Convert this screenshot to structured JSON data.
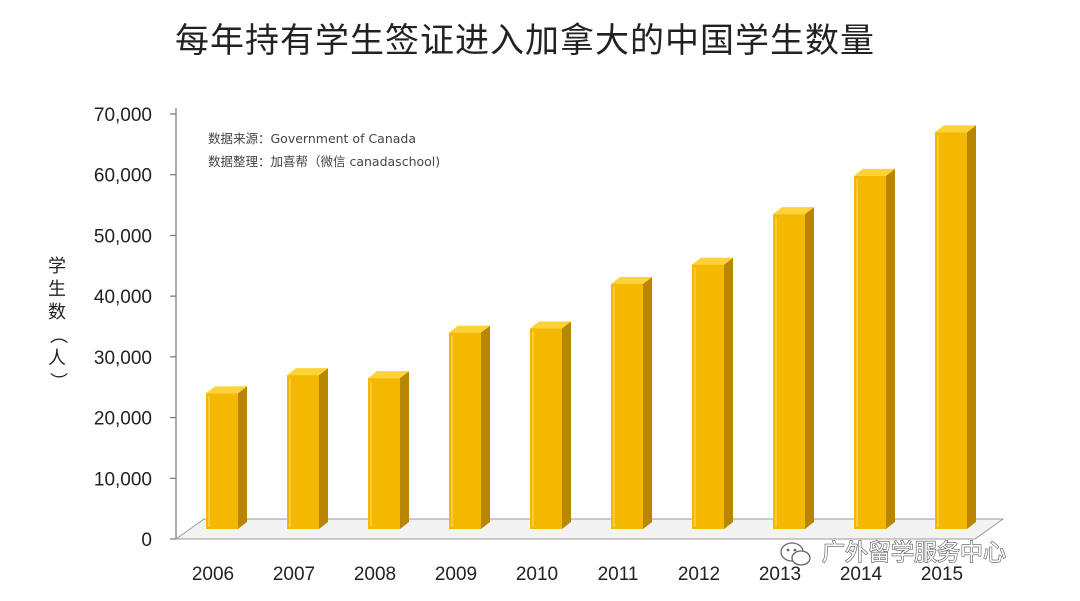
{
  "chart_data": {
    "type": "bar",
    "title": "每年持有学生签证进入加拿大的中国学生数量",
    "ylabel": "学生数（人）",
    "ylabel_chars": [
      "学",
      "生",
      "数",
      "（",
      "人",
      "）"
    ],
    "xlabel": "",
    "categories": [
      "2006",
      "2007",
      "2008",
      "2009",
      "2010",
      "2011",
      "2012",
      "2013",
      "2014",
      "2015"
    ],
    "values": [
      24000,
      27000,
      26500,
      34000,
      34700,
      42000,
      45200,
      53500,
      59800,
      67000
    ],
    "ylim": [
      0,
      70000
    ],
    "yticks": [
      0,
      10000,
      20000,
      30000,
      40000,
      50000,
      60000,
      70000
    ],
    "ytick_labels": [
      "0",
      "10,000",
      "20,000",
      "30,000",
      "40,000",
      "50,000",
      "60,000",
      "70,000"
    ],
    "annotations": [
      "数据来源：Government of Canada",
      "数据整理：加喜帮（微信 canadaschool)"
    ],
    "grid": false,
    "legend": "none",
    "style": "3d",
    "colors": {
      "bar_front": "#F5B800",
      "bar_side": "#B88600",
      "bar_top": "#FFD23A"
    }
  },
  "watermark": {
    "text": "广外留学服务中心",
    "icon": "wechat-icon"
  }
}
